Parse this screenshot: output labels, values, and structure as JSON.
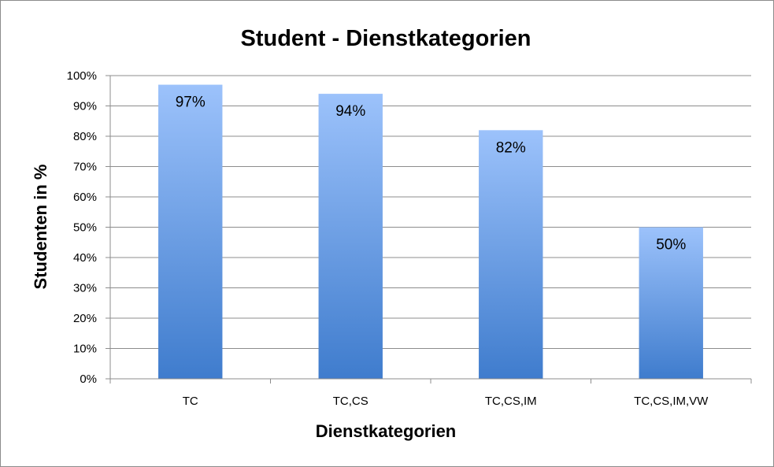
{
  "chart_data": {
    "type": "bar",
    "title": "Student - Dienstkategorien",
    "xlabel": "Dienstkategorien",
    "ylabel": "Studenten in %",
    "categories": [
      "TC",
      "TC,CS",
      "TC,CS,IM",
      "TC,CS,IM,VW"
    ],
    "values": [
      97,
      94,
      82,
      50
    ],
    "data_labels": [
      "97%",
      "94%",
      "82%",
      "50%"
    ],
    "ylim": [
      0,
      100
    ],
    "yticks": [
      0,
      10,
      20,
      30,
      40,
      50,
      60,
      70,
      80,
      90,
      100
    ],
    "ytick_labels": [
      "0%",
      "10%",
      "20%",
      "30%",
      "40%",
      "50%",
      "60%",
      "70%",
      "80%",
      "90%",
      "100%"
    ],
    "grid": true,
    "legend": "none",
    "colors": {
      "bar_top": "#9cc2fb",
      "bar_bottom": "#3f7ccd",
      "grid": "#8c8c8c"
    }
  }
}
